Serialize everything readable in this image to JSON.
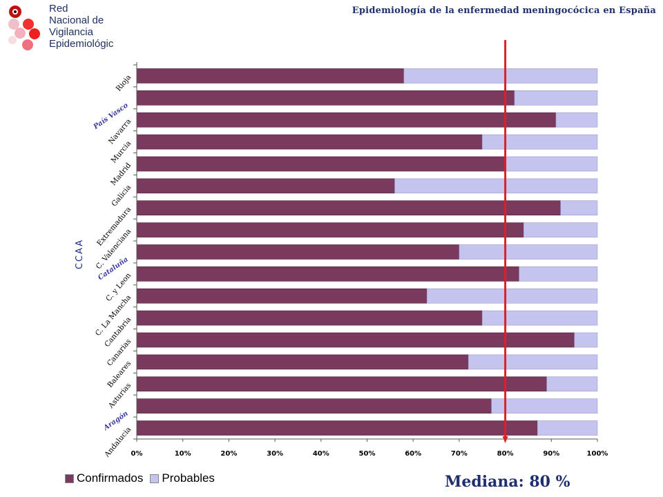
{
  "header": {
    "title": "Epidemiología de la enfermedad meningocócica en España",
    "logo_text": [
      "Red",
      "Nacional de",
      "Vigilancia",
      "Epidemiológica"
    ]
  },
  "median_label": "Mediana: 80 %",
  "colors": {
    "confirmados": "#7a3a5e",
    "probables": "#c4c4ee",
    "median_line": "#e02020",
    "annotation": "#3a3a9a"
  },
  "chart_data": {
    "type": "bar",
    "orientation": "horizontal",
    "stacked": true,
    "ylabel": "CCAA",
    "xlabel": "",
    "xlim": [
      0,
      100
    ],
    "x_ticks": [
      "0%",
      "10%",
      "20%",
      "30%",
      "40%",
      "50%",
      "60%",
      "70%",
      "80%",
      "90%",
      "100%"
    ],
    "categories": [
      "Andalucía",
      "Aragón",
      "Asturias",
      "Baleares",
      "Canarias",
      "Cantabria",
      "C. La Mancha",
      "C. y Leon",
      "Cataluña",
      "C. Valenciana",
      "Extremadura",
      "Galicia",
      "Madrid",
      "Murcia",
      "Navarra",
      "País Vasco",
      "Rioja"
    ],
    "category_tick_labels": [
      "Andalucia",
      "",
      "Asturias",
      "Baleares",
      "Canarias",
      "Cantabria",
      "C. La Mancha",
      "C. y Leon",
      "",
      "C. Valenciana",
      "Extremadura",
      "Galicia",
      "Madrid",
      "Murcia",
      "Navarra",
      "",
      "Rioja"
    ],
    "annotations": [
      "Aragón",
      "Cataluña",
      "País Vasco"
    ],
    "series": [
      {
        "name": "Confirmados",
        "values": [
          87,
          77,
          89,
          72,
          95,
          75,
          63,
          83,
          70,
          84,
          92,
          56,
          80,
          75,
          91,
          82,
          58
        ]
      },
      {
        "name": "Probables",
        "values": [
          13,
          23,
          11,
          28,
          5,
          25,
          37,
          17,
          30,
          16,
          8,
          44,
          20,
          25,
          9,
          18,
          42
        ]
      }
    ],
    "reference_line": {
      "value": 80,
      "label": "Mediana: 80 %"
    },
    "legend": "bottom-left",
    "grid": false
  }
}
